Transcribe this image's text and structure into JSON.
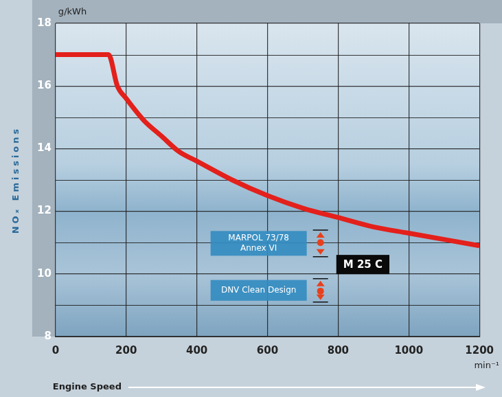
{
  "chart_data": {
    "type": "line",
    "y_unit": "g/kWh",
    "x_unit": "min⁻¹",
    "y_label": "NOₓ Emissions",
    "x_label": "Engine Speed",
    "x": [
      0,
      100,
      150,
      175,
      200,
      250,
      300,
      350,
      400,
      500,
      600,
      700,
      800,
      900,
      1000,
      1100,
      1200
    ],
    "series": [
      {
        "name": "M 25 C",
        "color": "#e3201b",
        "label_x": 870,
        "label_y": 10.3,
        "values": [
          17,
          17,
          17,
          16.0,
          15.6,
          14.9,
          14.4,
          13.9,
          13.6,
          13.0,
          12.5,
          12.1,
          11.8,
          11.5,
          11.3,
          11.1,
          10.9
        ]
      }
    ],
    "xlim": [
      0,
      1200
    ],
    "xticks": [
      0,
      200,
      400,
      600,
      800,
      1000,
      1200
    ],
    "ylim": [
      8,
      18
    ],
    "yticks": [
      8,
      10,
      12,
      14,
      16,
      18
    ],
    "grid": true,
    "annotations": [
      {
        "text": [
          "MARPOL 73/78",
          "Annex VI"
        ],
        "x": 750,
        "range": [
          10.55,
          11.4
        ],
        "value": 11.0
      },
      {
        "text": [
          "DNV Clean Design"
        ],
        "x": 750,
        "range": [
          9.1,
          9.85
        ],
        "value": 9.45
      }
    ]
  }
}
